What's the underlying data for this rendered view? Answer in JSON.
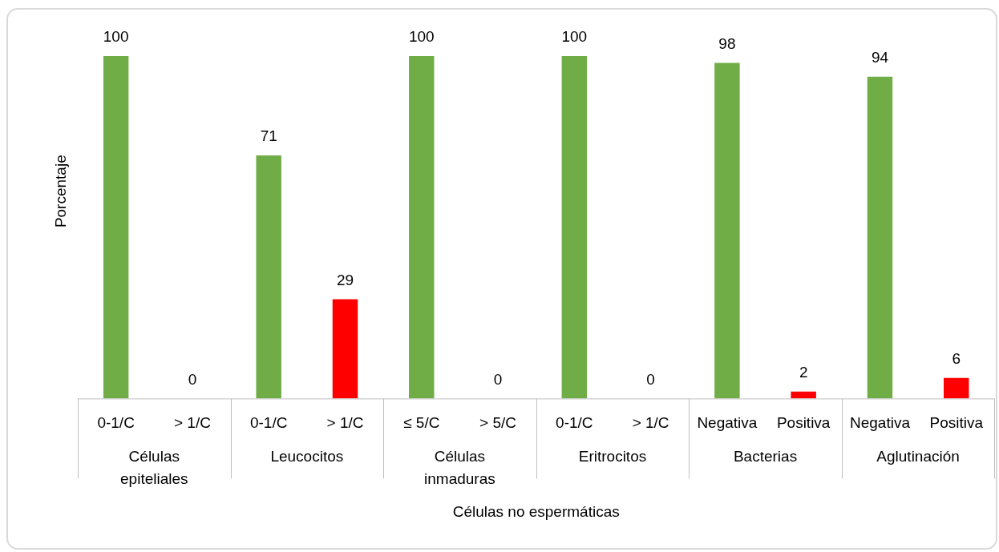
{
  "chart_data": {
    "type": "bar",
    "ylabel": "Porcentaje",
    "xlabel": "Células no espermáticas",
    "categories": [
      "0-1/C",
      "> 1/C",
      "0-1/C",
      "> 1/C",
      "≤ 5/C",
      "> 5/C",
      "0-1/C",
      "> 1/C",
      "Negativa",
      "Positiva",
      "Negativa",
      "Positiva"
    ],
    "values": [
      100,
      0,
      71,
      29,
      100,
      0,
      100,
      0,
      98,
      2,
      94,
      6
    ],
    "colors": [
      "#70ad47",
      "#ff0000",
      "#70ad47",
      "#ff0000",
      "#70ad47",
      "#ff0000",
      "#70ad47",
      "#ff0000",
      "#70ad47",
      "#ff0000",
      "#70ad47",
      "#ff0000"
    ],
    "annotations": [
      "Células epiteliales",
      "Leucocitos",
      "Células inmaduras",
      "Eritrocitos",
      "Bacterias",
      "Aglutinación"
    ],
    "data_labels": true,
    "grid": false,
    "legend": false
  }
}
